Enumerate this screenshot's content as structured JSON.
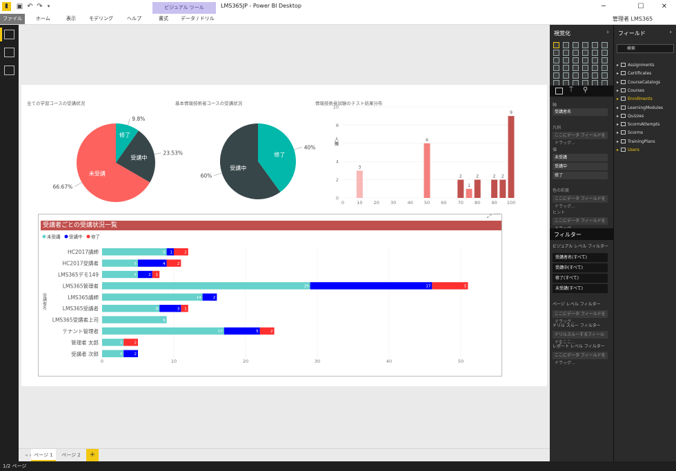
{
  "window": {
    "title": "LMS365JP - Power BI Desktop",
    "user": "管理者 LMS365",
    "visual_tools": "ビジュアル ツール"
  },
  "ribbon": {
    "tabs": [
      "ファイル",
      "ホーム",
      "表示",
      "モデリング",
      "ヘルプ",
      "書式",
      "データ / ドリル"
    ]
  },
  "colors": {
    "teal": "#01b8aa",
    "dark": "#374649",
    "red": "#fd625e",
    "blue": "#0000ff",
    "bright_red": "#ff2f2f",
    "cyan": "#66d2cb",
    "title_bar": "#c0504d"
  },
  "charts": {
    "pie1": {
      "title": "全ての学習コースの受講状況",
      "slices": [
        {
          "label": "修了",
          "value": 9.8,
          "pct": "9.8%"
        },
        {
          "label": "受講中",
          "value": 23.53,
          "pct": "23.53%"
        },
        {
          "label": "未受講",
          "value": 66.67,
          "pct": "66.67%"
        }
      ]
    },
    "pie2": {
      "title": "基本情報技術者コースの受講状況",
      "slices": [
        {
          "label": "修了",
          "value": 40,
          "pct": "40%"
        },
        {
          "label": "受講中",
          "value": 60,
          "pct": "60%"
        }
      ]
    },
    "hist": {
      "title": "情報技術者試験のテスト結果分布",
      "ylabel": "人数",
      "ylim": [
        0,
        10
      ],
      "yticks": [
        "0",
        "2",
        "4",
        "6",
        "8",
        "10"
      ],
      "xticks": [
        "0",
        "10",
        "20",
        "30",
        "40",
        "50",
        "60",
        "70",
        "80",
        "90",
        "100"
      ],
      "bars": [
        {
          "x": 10,
          "value": 3,
          "label": "3",
          "color": "#f7b8b6"
        },
        {
          "x": 50,
          "value": 6,
          "label": "6",
          "color": "#f3807c"
        },
        {
          "x": 70,
          "value": 2,
          "label": "2",
          "color": "#c0504d"
        },
        {
          "x": 75,
          "value": 1,
          "label": "1",
          "color": "#f3807c"
        },
        {
          "x": 80,
          "value": 2,
          "label": "2",
          "color": "#c0504d"
        },
        {
          "x": 90,
          "value": 2,
          "label": "2",
          "color": "#c0504d"
        },
        {
          "x": 95,
          "value": 2,
          "label": "2",
          "color": "#c0504d"
        },
        {
          "x": 100,
          "value": 9,
          "label": "9",
          "color": "#c0504d"
        }
      ]
    },
    "stacked": {
      "title": "受講者ごとの受講状況一覧",
      "ylabel": "受講者名",
      "legend": [
        "未受講",
        "受講中",
        "修了"
      ],
      "xlim": [
        0,
        50
      ],
      "xticks": [
        "0",
        "10",
        "20",
        "30",
        "40",
        "50"
      ],
      "categories": [
        "HC2017講師",
        "HC2017受講者",
        "LMS365デモ149",
        "LMS365管理者",
        "LMS365講師",
        "LMS365受講者",
        "LMS365受講者上司",
        "テナント管理者",
        "管理者 太郎",
        "受講者 次郎"
      ],
      "series": [
        {
          "name": "未受講",
          "values": [
            9,
            5,
            5,
            29,
            14,
            8,
            9,
            17,
            3,
            3
          ]
        },
        {
          "name": "受講中",
          "values": [
            1,
            4,
            2,
            17,
            2,
            3,
            0,
            5,
            0,
            2
          ]
        },
        {
          "name": "修了",
          "values": [
            2,
            2,
            1,
            5,
            0,
            1,
            0,
            2,
            2,
            0
          ]
        }
      ]
    }
  },
  "pages": {
    "tabs": [
      "ページ 1",
      "ページ 2"
    ],
    "add": "+",
    "status": "1/2 ページ"
  },
  "viz_pane": {
    "title": "視覚化",
    "wells": {
      "axis": "軸",
      "axis_value": "受講者名",
      "legend": "凡例",
      "legend_empty": "ここにデータ フィールドをドラッグ...",
      "values": "値",
      "values_items": [
        "未受講",
        "受講中",
        "修了"
      ],
      "saturation": "色の彩度",
      "saturation_empty": "ここにデータ フィールドをドラッグ...",
      "tooltip": "ヒント",
      "tooltip_empty": "ここにデータ フィールドをドラッグ..."
    },
    "filters": {
      "title": "フィルター",
      "visual_level": "ビジュアル レベル フィルター",
      "visual_items": [
        "受講者名(すべて)",
        "受講中(すべて)",
        "修了(すべて)",
        "未受講(すべて)"
      ],
      "page_level": "ページ レベル フィルター",
      "page_empty": "ここにデータ フィールドをドラッグ...",
      "drill": "ドリル スルー フィルター",
      "drill_empty": "ドリルスルーするフィールドをここ...",
      "report_level": "レポート レベル フィルター",
      "report_empty": "ここにデータ フィールドをドラッグ..."
    }
  },
  "fields_pane": {
    "title": "フィールド",
    "search_placeholder": "検索",
    "tables": [
      "Assignments",
      "Certificates",
      "CourseCatalogs",
      "Courses",
      "Enrollments",
      "LearningModules",
      "Quizzes",
      "ScormAttempts",
      "Scorms",
      "TrainingPlans",
      "Users"
    ],
    "highlighted": [
      "Enrollments",
      "Users"
    ]
  }
}
